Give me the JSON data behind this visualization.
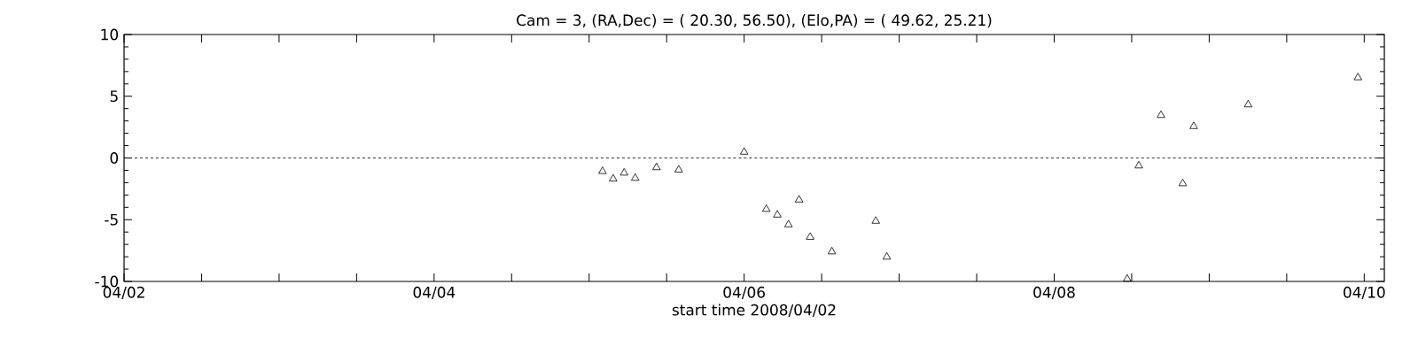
{
  "chart_data": {
    "type": "scatter",
    "title": "Cam = 3, (RA,Dec) = ( 20.30, 56.50), (Elo,PA) = (  49.62, 25.21)",
    "xlabel": "start time 2008/04/02",
    "x": [
      "2008-04-05T02:04",
      "2008-04-05T03:43",
      "2008-04-05T05:25",
      "2008-04-05T07:08",
      "2008-04-05T10:26",
      "2008-04-05T13:52",
      "2008-04-06T00:00",
      "2008-04-06T03:26",
      "2008-04-06T05:08",
      "2008-04-06T06:52",
      "2008-04-06T08:30",
      "2008-04-06T10:13",
      "2008-04-06T13:35",
      "2008-04-06T20:23",
      "2008-04-06T22:05",
      "2008-04-08T11:18",
      "2008-04-08T13:06",
      "2008-04-08T16:32",
      "2008-04-08T19:54",
      "2008-04-08T21:36",
      "2008-04-09T06:02",
      "2008-04-09T23:02"
    ],
    "series": [
      {
        "color": "#000000",
        "values": [
          -1.08,
          -1.69,
          -1.21,
          -1.63,
          -0.77,
          -0.96,
          0.48,
          -4.15,
          -4.61,
          -5.4,
          -3.39,
          -6.41,
          -7.59,
          -5.11,
          -8.02,
          -9.8,
          -0.63,
          3.46,
          -2.07,
          2.56,
          4.32,
          6.51
        ]
      }
    ],
    "marker": "triangle",
    "xlim": [
      "2008-04-02",
      "2008-04-10T03:07"
    ],
    "ylim": [
      -10,
      10
    ],
    "xticks": [
      {
        "value": "2008-04-02",
        "label": "04/02"
      },
      {
        "value": "2008-04-02T12:00",
        "label": null
      },
      {
        "value": "2008-04-03",
        "label": null
      },
      {
        "value": "2008-04-03T12:00",
        "label": null
      },
      {
        "value": "2008-04-04",
        "label": "04/04"
      },
      {
        "value": "2008-04-04T12:00",
        "label": null
      },
      {
        "value": "2008-04-05",
        "label": null
      },
      {
        "value": "2008-04-05T12:00",
        "label": null
      },
      {
        "value": "2008-04-06",
        "label": "04/06"
      },
      {
        "value": "2008-04-06T12:00",
        "label": null
      },
      {
        "value": "2008-04-07",
        "label": null
      },
      {
        "value": "2008-04-07T12:00",
        "label": null
      },
      {
        "value": "2008-04-08",
        "label": "04/08"
      },
      {
        "value": "2008-04-08T12:00",
        "label": null
      },
      {
        "value": "2008-04-09",
        "label": null
      },
      {
        "value": "2008-04-09T12:00",
        "label": null
      },
      {
        "value": "2008-04-10",
        "label": "04/10"
      }
    ],
    "yticks": [
      -10,
      -5,
      0,
      5,
      10
    ],
    "ref_lines": [
      {
        "axis": "y",
        "value": 0,
        "color": "#000000",
        "line_style": "dashed"
      }
    ]
  }
}
